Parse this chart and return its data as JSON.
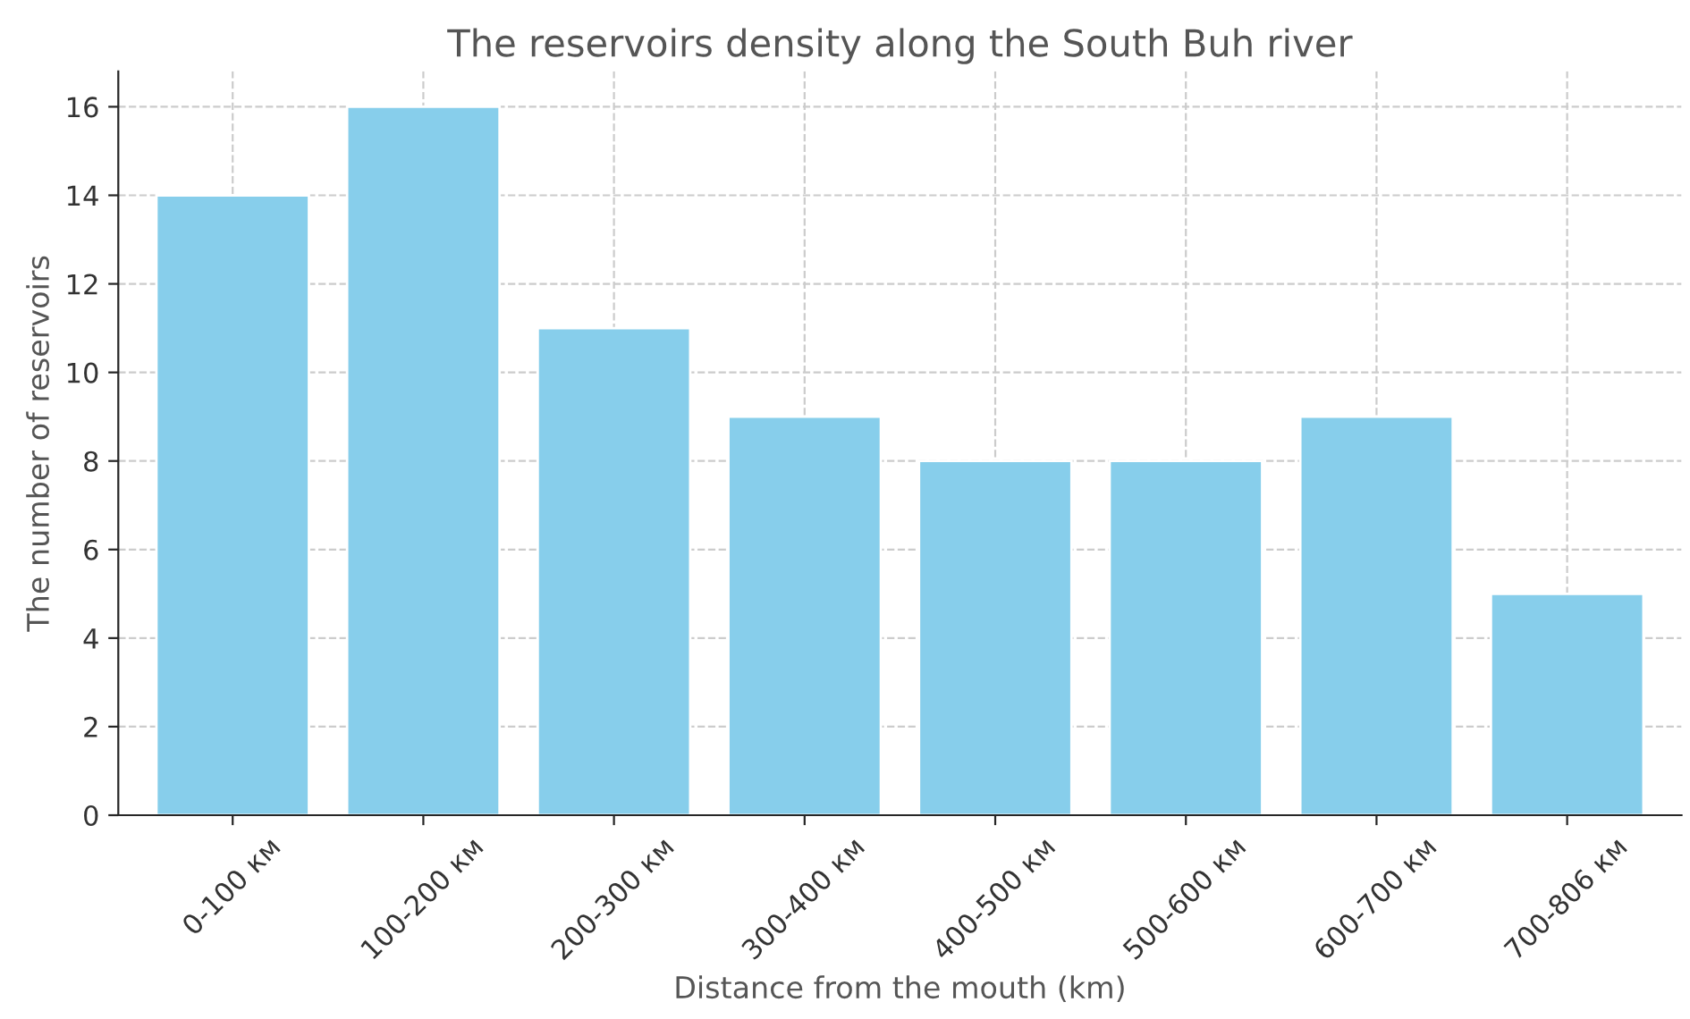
{
  "chart_data": {
    "type": "bar",
    "title": "The reservoirs density along the South Buh river",
    "xlabel": "Distance from the mouth (km)",
    "ylabel": "The number of reservoirs",
    "categories": [
      "0-100 км",
      "100-200 км",
      "200-300 км",
      "300-400 км",
      "400-500 км",
      "500-600 км",
      "600-700 км",
      "700-806 км"
    ],
    "values": [
      14,
      16,
      11,
      9,
      8,
      8,
      9,
      5
    ],
    "color": "#87ceeb",
    "ylim": [
      0,
      16.8
    ],
    "yticks": [
      0,
      2,
      4,
      6,
      8,
      10,
      12,
      14,
      16
    ],
    "grid": true
  }
}
